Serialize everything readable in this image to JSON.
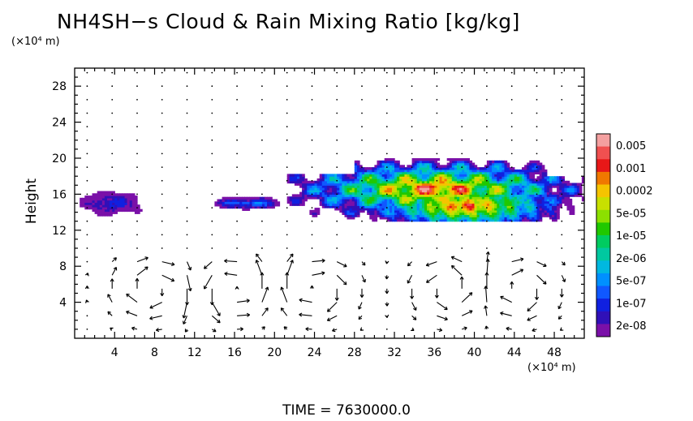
{
  "title": "NH4SH−s Cloud & Rain Mixing Ratio [kg/kg]",
  "y_unit": "(×10⁴ m)",
  "x_unit": "(×10⁴ m)",
  "ylabel": "Height",
  "time_label": "TIME  =  7630000.0",
  "chart_data": {
    "type": "heatmap",
    "x_ticks": [
      "4",
      "8",
      "12",
      "16",
      "20",
      "24",
      "28",
      "32",
      "36",
      "40",
      "44",
      "48"
    ],
    "y_ticks": [
      "4",
      "8",
      "12",
      "16",
      "20",
      "24",
      "28"
    ],
    "xlim": [
      0,
      51
    ],
    "ylim": [
      0,
      30
    ],
    "colorbar": {
      "labels": [
        "0.005",
        "0.001",
        "0.0002",
        "5e-05",
        "1e-05",
        "2e-06",
        "5e-07",
        "1e-07",
        "2e-08"
      ],
      "colors": [
        "#f4a0a0",
        "#f05050",
        "#e81818",
        "#f07800",
        "#f5c400",
        "#c8e000",
        "#8ce000",
        "#20c800",
        "#00cc60",
        "#00c8a0",
        "#00b8e0",
        "#0090ff",
        "#1058ff",
        "#1020e0",
        "#3010b8",
        "#7a10a8"
      ]
    },
    "cloud_regions": [
      {
        "x0": 0.5,
        "x1": 6.8,
        "y0": 13.6,
        "y1": 16.2,
        "peak": "1e-07"
      },
      {
        "x0": 13.5,
        "x1": 21,
        "y0": 14.2,
        "y1": 15.6,
        "peak": "5e-07"
      },
      {
        "x0": 21,
        "x1": 51,
        "y0": 13,
        "y1": 20,
        "peak": "0.001"
      }
    ],
    "vector_field": "wind vectors on regular grid; circulation cells near x=8,16,24,38,44 at heights 2-9"
  },
  "colors": {
    "background": "#ffffff",
    "axes": "#000000",
    "vectors": "#000000"
  }
}
